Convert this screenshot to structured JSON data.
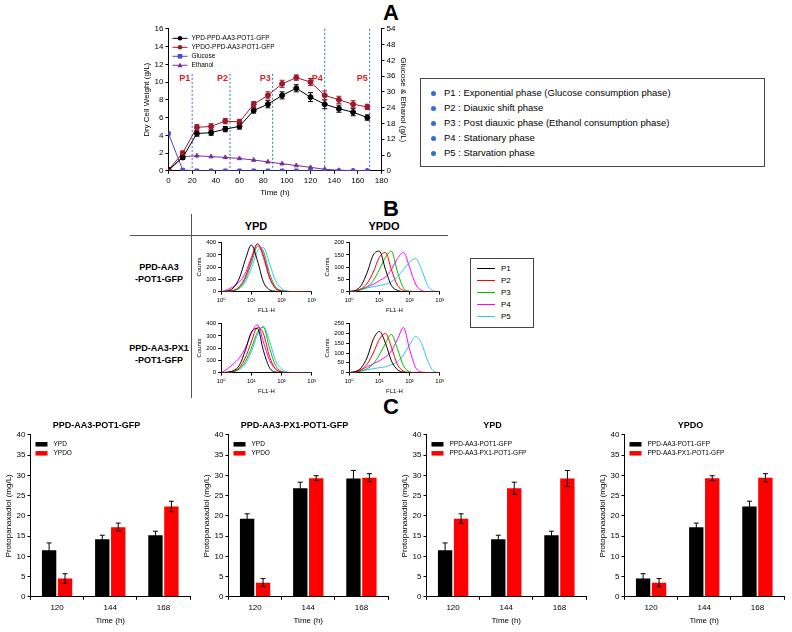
{
  "figure": {
    "panel_labels": [
      "A",
      "B",
      "C"
    ],
    "phase_legend": [
      "P1 : Exponential phase (Glucose consumption phase)",
      "P2 : Diauxic shift phase",
      "P3 : Post diauxic phase (Ethanol consumption phase)",
      "P4 : Stationary phase",
      "P5 : Starvation phase"
    ],
    "panel_b": {
      "columns": [
        "YPD",
        "YPDO"
      ],
      "rows": [
        [
          "PPD-AA3",
          "-POT1-GFP"
        ],
        [
          "PPD-AA3-PX1",
          "-POT1-GFP"
        ]
      ]
    }
  },
  "chart_data": [
    {
      "type": "line",
      "x_label": "Time (h)",
      "y_label": "Dry Cell Weight (g/L)",
      "y2_label": "Glucose & Ethanol (g/L)",
      "x": [
        0,
        12,
        24,
        36,
        48,
        60,
        72,
        84,
        96,
        108,
        120,
        132,
        144,
        156,
        168
      ],
      "xlim": [
        0,
        180
      ],
      "xticks": [
        0,
        20,
        40,
        60,
        80,
        100,
        120,
        140,
        160,
        180
      ],
      "ylim": [
        0,
        16
      ],
      "yticks": [
        0,
        2,
        4,
        6,
        8,
        10,
        12,
        14,
        16
      ],
      "y2lim": [
        0,
        54
      ],
      "y2ticks": [
        0,
        6,
        12,
        18,
        24,
        30,
        36,
        42,
        48,
        54
      ],
      "grid": false,
      "legend": "top-left",
      "annotations": [
        {
          "x": 20,
          "label": "P1"
        },
        {
          "x": 52,
          "label": "P2"
        },
        {
          "x": 88,
          "label": "P3"
        },
        {
          "x": 132,
          "label": "P4"
        },
        {
          "x": 170,
          "label": "P5"
        }
      ],
      "series": [
        {
          "name": "YPD-PPD-AA3-POT1-GFP",
          "color": "#000000",
          "marker": "circle",
          "values": [
            0.1,
            1.5,
            4.2,
            4.3,
            4.7,
            5.0,
            6.8,
            7.5,
            8.5,
            9.3,
            8.3,
            7.5,
            7.0,
            6.6,
            6.0
          ],
          "errors": [
            0.05,
            0.2,
            0.3,
            0.3,
            0.3,
            0.3,
            0.3,
            0.4,
            0.4,
            0.4,
            0.5,
            0.5,
            0.4,
            0.4,
            0.3
          ]
        },
        {
          "name": "YPDO-PPD-AA3-POT1-GFP",
          "color": "#a0182a",
          "marker": "circle",
          "values": [
            0.1,
            2.0,
            4.9,
            5.0,
            5.6,
            5.5,
            7.5,
            8.5,
            9.8,
            10.5,
            10.0,
            8.5,
            8.0,
            7.5,
            7.2
          ],
          "errors": [
            0.05,
            0.2,
            0.3,
            0.3,
            0.3,
            0.3,
            0.3,
            0.4,
            0.4,
            0.3,
            0.4,
            0.5,
            0.4,
            0.4,
            0.3
          ]
        },
        {
          "name": "Glucose",
          "color": "#4b4bc8",
          "marker": "square",
          "axis": "y2",
          "values": [
            14.2,
            0.3,
            0,
            0,
            0,
            0,
            0,
            0,
            0,
            0,
            0,
            0,
            0,
            0,
            0
          ]
        },
        {
          "name": "Ethanol",
          "color": "#7a2f9a",
          "marker": "triangle",
          "axis": "y2",
          "values": [
            0,
            5.4,
            5.7,
            5.4,
            5.1,
            4.7,
            4.1,
            3.4,
            2.7,
            2.0,
            1.3,
            0.6,
            0.2,
            0.1,
            0.1
          ]
        }
      ]
    },
    {
      "type": "line",
      "log": "x",
      "grid": false,
      "x_label": "FL1-H",
      "y_label": "Counts",
      "x": [
        1,
        1.6,
        2.5,
        4,
        6.3,
        10,
        16,
        25,
        40,
        63,
        100,
        160,
        250,
        400,
        630,
        1000
      ],
      "xlim": [
        1,
        1000
      ],
      "xticks": [
        {
          "value": 1,
          "label": "10⁰"
        },
        {
          "value": 10,
          "label": "10¹"
        },
        {
          "value": 100,
          "label": "10²"
        },
        {
          "value": 1000,
          "label": "10³"
        }
      ],
      "ylim": [
        0,
        400
      ],
      "yticks": [
        0,
        100,
        200,
        300,
        400
      ],
      "series": [
        {
          "name": "P1",
          "color": "#000000",
          "marker": "none",
          "values": [
            0,
            5,
            30,
            110,
            260,
            380,
            250,
            80,
            15,
            3,
            0,
            0,
            0,
            0,
            0,
            0
          ]
        },
        {
          "name": "P2",
          "color": "#ff0000",
          "marker": "none",
          "values": [
            0,
            2,
            10,
            40,
            120,
            260,
            390,
            300,
            120,
            25,
            5,
            0,
            0,
            0,
            0,
            0
          ]
        },
        {
          "name": "P3",
          "color": "#00c000",
          "marker": "none",
          "values": [
            0,
            2,
            8,
            30,
            100,
            230,
            370,
            330,
            150,
            40,
            8,
            1,
            0,
            0,
            0,
            0
          ]
        },
        {
          "name": "P4",
          "color": "#ff00ff",
          "marker": "none",
          "values": [
            0,
            15,
            40,
            80,
            150,
            280,
            390,
            280,
            110,
            30,
            6,
            1,
            0,
            0,
            0,
            0
          ]
        },
        {
          "name": "P5",
          "color": "#33c4f0",
          "marker": "none",
          "values": [
            0,
            2,
            8,
            25,
            80,
            190,
            330,
            360,
            230,
            90,
            25,
            5,
            0,
            0,
            0,
            0
          ]
        }
      ]
    },
    {
      "type": "line",
      "log": "x",
      "grid": false,
      "x_label": "FL1-H",
      "y_label": "Counts",
      "x": [
        1,
        1.6,
        2.5,
        4,
        6.3,
        10,
        16,
        25,
        40,
        63,
        100,
        160,
        250,
        400,
        630,
        1000
      ],
      "xlim": [
        1,
        1000
      ],
      "xticks": [
        {
          "value": 1,
          "label": "10⁰"
        },
        {
          "value": 10,
          "label": "10¹"
        },
        {
          "value": 100,
          "label": "10²"
        },
        {
          "value": 1000,
          "label": "10³"
        }
      ],
      "ylim": [
        0,
        200
      ],
      "yticks": [
        0,
        50,
        100,
        150,
        200
      ],
      "series": [
        {
          "name": "P1",
          "color": "#000000",
          "marker": "none",
          "values": [
            0,
            5,
            25,
            80,
            150,
            165,
            90,
            25,
            5,
            0,
            0,
            0,
            0,
            0,
            0,
            0
          ]
        },
        {
          "name": "P2",
          "color": "#ff0000",
          "marker": "none",
          "values": [
            0,
            3,
            12,
            35,
            80,
            140,
            160,
            90,
            25,
            5,
            0,
            0,
            0,
            0,
            0,
            0
          ]
        },
        {
          "name": "P3",
          "color": "#00c000",
          "marker": "none",
          "values": [
            0,
            2,
            8,
            20,
            45,
            90,
            140,
            165,
            80,
            15,
            2,
            0,
            0,
            0,
            0,
            0
          ]
        },
        {
          "name": "P4",
          "color": "#ff00ff",
          "marker": "none",
          "values": [
            0,
            3,
            10,
            20,
            30,
            45,
            60,
            90,
            135,
            160,
            100,
            30,
            5,
            0,
            0,
            0
          ]
        },
        {
          "name": "P5",
          "color": "#33c4f0",
          "marker": "none",
          "values": [
            0,
            3,
            8,
            15,
            20,
            25,
            30,
            40,
            60,
            90,
            120,
            135,
            90,
            25,
            3,
            0
          ]
        }
      ]
    },
    {
      "type": "line",
      "log": "x",
      "grid": false,
      "x_label": "FL1-H",
      "y_label": "Counts",
      "x": [
        1,
        1.6,
        2.5,
        4,
        6.3,
        10,
        16,
        25,
        40,
        63,
        100,
        160,
        250,
        400,
        630,
        1000
      ],
      "xlim": [
        1,
        1000
      ],
      "xticks": [
        {
          "value": 1,
          "label": "10⁰"
        },
        {
          "value": 10,
          "label": "10¹"
        },
        {
          "value": 100,
          "label": "10²"
        },
        {
          "value": 1000,
          "label": "10³"
        }
      ],
      "ylim": [
        0,
        400
      ],
      "yticks": [
        0,
        100,
        200,
        300,
        400
      ],
      "series": [
        {
          "name": "P1",
          "color": "#000000",
          "marker": "none",
          "values": [
            0,
            3,
            15,
            60,
            180,
            330,
            360,
            180,
            40,
            5,
            0,
            0,
            0,
            0,
            0,
            0
          ]
        },
        {
          "name": "P2",
          "color": "#ff0000",
          "marker": "none",
          "values": [
            0,
            2,
            10,
            40,
            120,
            250,
            370,
            320,
            130,
            30,
            5,
            0,
            0,
            0,
            0,
            0
          ]
        },
        {
          "name": "P3",
          "color": "#00c000",
          "marker": "none",
          "values": [
            0,
            2,
            8,
            30,
            90,
            200,
            330,
            370,
            200,
            60,
            10,
            1,
            0,
            0,
            0,
            0
          ]
        },
        {
          "name": "P4",
          "color": "#ff00ff",
          "marker": "none",
          "values": [
            0,
            30,
            70,
            120,
            200,
            320,
            390,
            250,
            100,
            30,
            6,
            0,
            0,
            0,
            0,
            0
          ]
        },
        {
          "name": "P5",
          "color": "#33c4f0",
          "marker": "none",
          "values": [
            0,
            2,
            8,
            25,
            70,
            170,
            310,
            380,
            260,
            100,
            30,
            5,
            0,
            0,
            0,
            0
          ]
        }
      ]
    },
    {
      "type": "line",
      "log": "x",
      "grid": false,
      "x_label": "FL1-H",
      "y_label": "Counts",
      "x": [
        1,
        1.6,
        2.5,
        4,
        6.3,
        10,
        16,
        25,
        40,
        63,
        100,
        160,
        250,
        400,
        630,
        1000
      ],
      "xlim": [
        1,
        1000
      ],
      "xticks": [
        {
          "value": 1,
          "label": "10⁰"
        },
        {
          "value": 10,
          "label": "10¹"
        },
        {
          "value": 100,
          "label": "10²"
        },
        {
          "value": 1000,
          "label": "10³"
        }
      ],
      "ylim": [
        0,
        250
      ],
      "yticks": [
        0,
        50,
        100,
        150,
        200,
        250
      ],
      "series": [
        {
          "name": "P1",
          "color": "#000000",
          "marker": "none",
          "values": [
            0,
            5,
            25,
            80,
            170,
            210,
            150,
            60,
            15,
            2,
            0,
            0,
            0,
            0,
            0,
            0
          ]
        },
        {
          "name": "P2",
          "color": "#ff0000",
          "marker": "none",
          "values": [
            0,
            3,
            15,
            45,
            100,
            170,
            200,
            130,
            40,
            8,
            1,
            0,
            0,
            0,
            0,
            0
          ]
        },
        {
          "name": "P3",
          "color": "#00c000",
          "marker": "none",
          "values": [
            0,
            2,
            8,
            20,
            45,
            90,
            150,
            195,
            120,
            35,
            5,
            0,
            0,
            0,
            0,
            0
          ]
        },
        {
          "name": "P4",
          "color": "#ff00ff",
          "marker": "none",
          "values": [
            0,
            5,
            15,
            30,
            45,
            60,
            80,
            110,
            170,
            230,
            120,
            25,
            3,
            0,
            0,
            0
          ]
        },
        {
          "name": "P5",
          "color": "#33c4f0",
          "marker": "none",
          "values": [
            0,
            3,
            8,
            15,
            20,
            25,
            30,
            40,
            55,
            90,
            140,
            185,
            150,
            60,
            8,
            0
          ]
        }
      ]
    },
    {
      "type": "bar",
      "title": "PPD-AA3-POT1-GFP",
      "x_label": "Time (h)",
      "y_label": "Protopanaxadiol (mg/L)",
      "categories": [
        "120",
        "144",
        "168"
      ],
      "ylim": [
        0,
        40
      ],
      "yticks": [
        0,
        5,
        10,
        15,
        20,
        25,
        30,
        35,
        40
      ],
      "grid": false,
      "legend": "top-left",
      "series": [
        {
          "name": "YPD",
          "color": "#000000",
          "values": [
            11.5,
            14.2,
            15.2
          ],
          "errors": [
            1.8,
            1.0,
            1.0
          ]
        },
        {
          "name": "YPDO",
          "color": "#ff0000",
          "values": [
            4.5,
            17.2,
            22.3
          ],
          "errors": [
            1.2,
            1.0,
            1.3
          ]
        }
      ]
    },
    {
      "type": "bar",
      "title": "PPD-AA3-PX1-POT1-GFP",
      "x_label": "Time (h)",
      "y_label": "Protopanaxadiol (mg/L)",
      "categories": [
        "120",
        "144",
        "168"
      ],
      "ylim": [
        0,
        40
      ],
      "yticks": [
        0,
        5,
        10,
        15,
        20,
        25,
        30,
        35,
        40
      ],
      "grid": false,
      "legend": "top-left",
      "series": [
        {
          "name": "YPD",
          "color": "#000000",
          "values": [
            19.3,
            26.8,
            29.2
          ],
          "errors": [
            1.2,
            1.5,
            2.0
          ]
        },
        {
          "name": "YPDO",
          "color": "#ff0000",
          "values": [
            3.5,
            29.3,
            29.4
          ],
          "errors": [
            1.0,
            0.6,
            1.0
          ]
        }
      ]
    },
    {
      "type": "bar",
      "title": "YPD",
      "x_label": "Time (h)",
      "y_label": "Protopanaxadiol (mg/L)",
      "categories": [
        "120",
        "144",
        "168"
      ],
      "ylim": [
        0,
        40
      ],
      "yticks": [
        0,
        5,
        10,
        15,
        20,
        25,
        30,
        35,
        40
      ],
      "grid": false,
      "legend": "top-left",
      "series": [
        {
          "name": "PPD-AA3-POT1-GFP",
          "color": "#000000",
          "values": [
            11.5,
            14.2,
            15.2
          ],
          "errors": [
            1.8,
            1.0,
            1.0
          ]
        },
        {
          "name": "PPD-AA3-PX1-POT1-GFP",
          "color": "#ff0000",
          "values": [
            19.3,
            26.8,
            29.2
          ],
          "errors": [
            1.2,
            1.5,
            2.0
          ]
        }
      ]
    },
    {
      "type": "bar",
      "title": "YPDO",
      "x_label": "Time (h)",
      "y_label": "Protopanaxadiol (mg/L)",
      "categories": [
        "120",
        "144",
        "168"
      ],
      "ylim": [
        0,
        40
      ],
      "yticks": [
        0,
        5,
        10,
        15,
        20,
        25,
        30,
        35,
        40
      ],
      "grid": false,
      "legend": "top-left",
      "series": [
        {
          "name": "PPD-AA3-POT1-GFP",
          "color": "#000000",
          "values": [
            4.5,
            17.2,
            22.3
          ],
          "errors": [
            1.2,
            1.0,
            1.3
          ]
        },
        {
          "name": "PPD-AA3-PX1-POT1-GFP",
          "color": "#ff0000",
          "values": [
            3.5,
            29.3,
            29.4
          ],
          "errors": [
            1.0,
            0.6,
            1.0
          ]
        }
      ]
    }
  ]
}
